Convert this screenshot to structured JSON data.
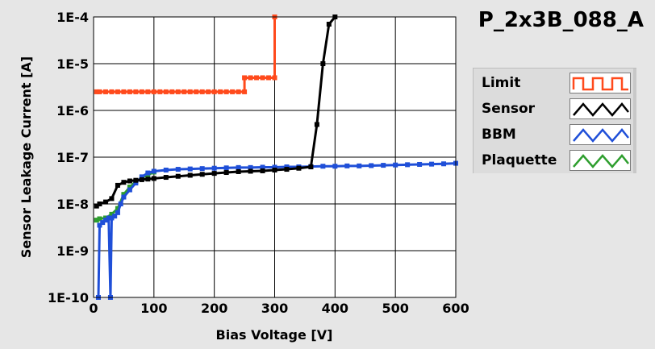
{
  "chart_data": {
    "type": "line",
    "title": "P_2x3B_088_A",
    "xlabel": "Bias Voltage [V]",
    "ylabel": "Sensor Leakage Current [A]",
    "xlim": [
      0,
      600
    ],
    "ylim": [
      1e-10,
      0.0001
    ],
    "yscale": "log",
    "grid": true,
    "legend_position": "right",
    "x_ticks": [
      "0",
      "100",
      "200",
      "300",
      "400",
      "500",
      "600"
    ],
    "y_ticks": [
      "1E-10",
      "1E-9",
      "1E-8",
      "1E-7",
      "1E-6",
      "1E-5",
      "1E-4"
    ],
    "series": [
      {
        "name": "Limit",
        "color": "#ff4a1c",
        "x": [
          5,
          10,
          20,
          30,
          40,
          50,
          60,
          70,
          80,
          90,
          100,
          110,
          120,
          130,
          140,
          150,
          160,
          170,
          180,
          190,
          200,
          210,
          220,
          230,
          240,
          250,
          250,
          260,
          270,
          280,
          290,
          300,
          300
        ],
        "y": [
          2.5e-06,
          2.5e-06,
          2.5e-06,
          2.5e-06,
          2.5e-06,
          2.5e-06,
          2.5e-06,
          2.5e-06,
          2.5e-06,
          2.5e-06,
          2.5e-06,
          2.5e-06,
          2.5e-06,
          2.5e-06,
          2.5e-06,
          2.5e-06,
          2.5e-06,
          2.5e-06,
          2.5e-06,
          2.5e-06,
          2.5e-06,
          2.5e-06,
          2.5e-06,
          2.5e-06,
          2.5e-06,
          2.5e-06,
          5e-06,
          5e-06,
          5e-06,
          5e-06,
          5e-06,
          5e-06,
          0.0001
        ]
      },
      {
        "name": "Sensor",
        "color": "#000000",
        "x": [
          5,
          10,
          20,
          30,
          40,
          50,
          60,
          70,
          80,
          90,
          100,
          120,
          140,
          160,
          180,
          200,
          220,
          240,
          260,
          280,
          300,
          320,
          340,
          360,
          370,
          380,
          390,
          400
        ],
        "y": [
          9e-09,
          1e-08,
          1.1e-08,
          1.3e-08,
          2.5e-08,
          2.9e-08,
          3.1e-08,
          3.2e-08,
          3.3e-08,
          3.4e-08,
          3.5e-08,
          3.7e-08,
          3.9e-08,
          4.1e-08,
          4.3e-08,
          4.5e-08,
          4.7e-08,
          4.9e-08,
          5e-08,
          5.1e-08,
          5.3e-08,
          5.5e-08,
          5.8e-08,
          6.2e-08,
          5e-07,
          1e-05,
          7e-05,
          0.0001
        ]
      },
      {
        "name": "BBM",
        "color": "#1f4fd8",
        "x": [
          8,
          10,
          15,
          20,
          25,
          28,
          30,
          35,
          40,
          45,
          50,
          60,
          70,
          80,
          90,
          100,
          120,
          140,
          160,
          180,
          200,
          220,
          240,
          260,
          280,
          300,
          320,
          340,
          360,
          380,
          400,
          420,
          440,
          460,
          480,
          500,
          520,
          540,
          560,
          580,
          600
        ],
        "y": [
          1e-10,
          3.5e-09,
          4e-09,
          4.5e-09,
          5e-09,
          1e-10,
          5e-09,
          5.5e-09,
          6.5e-09,
          1e-08,
          1.4e-08,
          2e-08,
          2.8e-08,
          3.8e-08,
          4.6e-08,
          5e-08,
          5.3e-08,
          5.5e-08,
          5.6e-08,
          5.7e-08,
          5.8e-08,
          5.9e-08,
          6e-08,
          6e-08,
          6.1e-08,
          6.1e-08,
          6.2e-08,
          6.2e-08,
          6.3e-08,
          6.4e-08,
          6.4e-08,
          6.5e-08,
          6.5e-08,
          6.6e-08,
          6.7e-08,
          6.8e-08,
          6.9e-08,
          7e-08,
          7.1e-08,
          7.2e-08,
          7.4e-08
        ]
      },
      {
        "name": "Plaquette",
        "color": "#2e9e2e",
        "x": [
          5,
          10,
          20,
          30,
          40,
          50,
          60,
          70,
          80,
          90,
          100
        ],
        "y": [
          4.5e-09,
          4.8e-09,
          5e-09,
          6e-09,
          8e-09,
          1.6e-08,
          2.3e-08,
          3e-08,
          3.6e-08,
          4.2e-08,
          4.8e-08
        ]
      }
    ]
  }
}
